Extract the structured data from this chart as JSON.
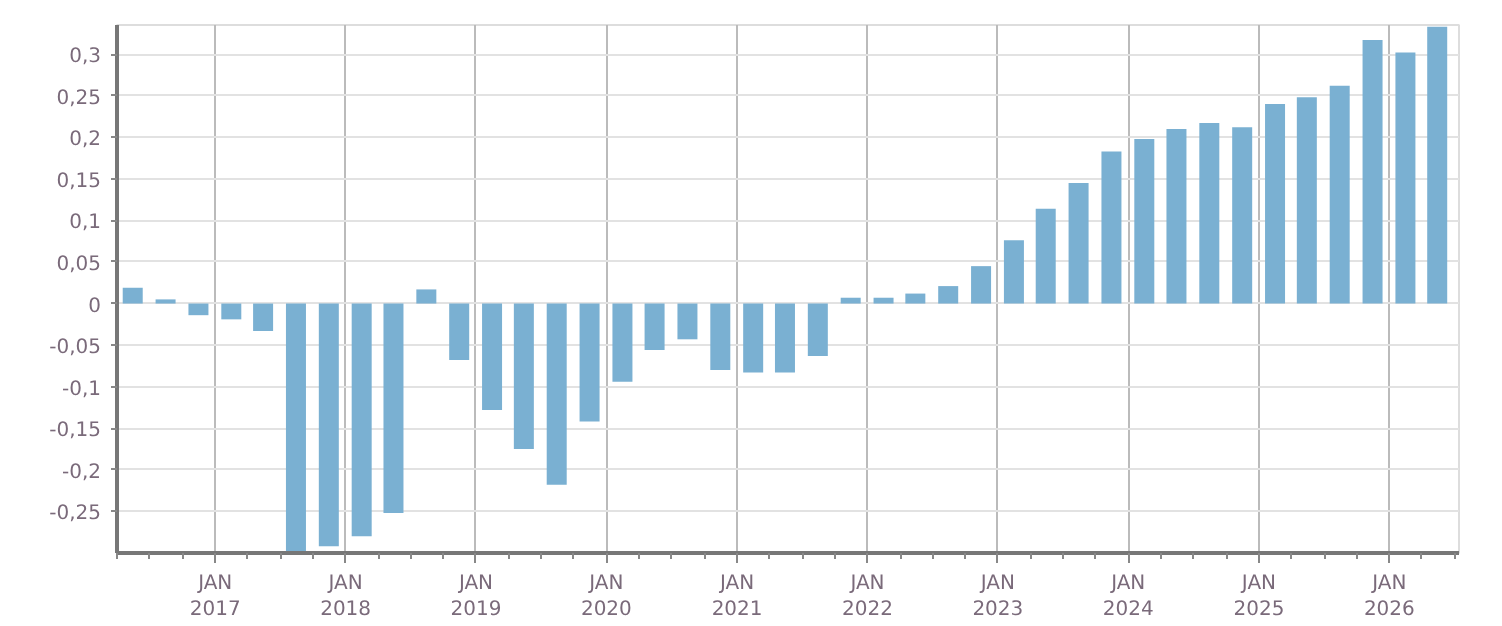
{
  "chart_data": {
    "type": "bar",
    "x": [
      "2016-05-15",
      "2016-08-15",
      "2016-11-15",
      "2017-02-15",
      "2017-05-15",
      "2017-08-15",
      "2017-11-15",
      "2018-02-15",
      "2018-05-15",
      "2018-08-15",
      "2018-11-15",
      "2019-02-15",
      "2019-05-15",
      "2019-08-15",
      "2019-11-15",
      "2020-02-15",
      "2020-05-15",
      "2020-08-15",
      "2020-11-15",
      "2021-02-15",
      "2021-05-15",
      "2021-08-15",
      "2021-11-15",
      "2022-02-15",
      "2022-05-15",
      "2022-08-15",
      "2022-11-15",
      "2023-02-15",
      "2023-05-15",
      "2023-08-15",
      "2023-11-15",
      "2024-02-15",
      "2024-05-15",
      "2024-08-15",
      "2024-11-15",
      "2025-02-15",
      "2025-05-15",
      "2025-08-15",
      "2025-11-15",
      "2026-02-15",
      "2026-05-15"
    ],
    "values": [
      0.019,
      0.005,
      -0.014,
      -0.019,
      -0.033,
      -0.3,
      -0.292,
      -0.28,
      -0.252,
      0.017,
      -0.068,
      -0.128,
      -0.175,
      -0.218,
      -0.142,
      -0.094,
      -0.056,
      -0.043,
      -0.08,
      -0.083,
      -0.083,
      -0.063,
      0.007,
      0.007,
      0.012,
      0.021,
      0.045,
      0.076,
      0.114,
      0.145,
      0.183,
      0.198,
      0.21,
      0.217,
      0.212,
      0.24,
      0.248,
      0.262,
      0.317,
      0.302,
      0.333
    ],
    "color": "#7ab0d2",
    "xlim": [
      "2016-04-01",
      "2026-07-15"
    ],
    "xticks": [
      {
        "value": "2017-01-01",
        "label": "JAN\n2017"
      },
      {
        "value": "2018-01-01",
        "label": "JAN\n2018"
      },
      {
        "value": "2019-01-01",
        "label": "JAN\n2019"
      },
      {
        "value": "2020-01-01",
        "label": "JAN\n2020"
      },
      {
        "value": "2021-01-01",
        "label": "JAN\n2021"
      },
      {
        "value": "2022-01-01",
        "label": "JAN\n2022"
      },
      {
        "value": "2023-01-01",
        "label": "JAN\n2023"
      },
      {
        "value": "2024-01-01",
        "label": "JAN\n2024"
      },
      {
        "value": "2025-01-01",
        "label": "JAN\n2025"
      },
      {
        "value": "2026-01-01",
        "label": "JAN\n2026"
      }
    ],
    "ylim": [
      -0.3,
      0.335
    ],
    "yticks": [
      {
        "value": -0.25,
        "label": "-0,25"
      },
      {
        "value": -0.2,
        "label": "-0,2"
      },
      {
        "value": -0.15,
        "label": "-0,15"
      },
      {
        "value": -0.1,
        "label": "-0,1"
      },
      {
        "value": -0.05,
        "label": "-0,05"
      },
      0,
      {
        "value": 0.05,
        "label": "0,05"
      },
      {
        "value": 0.1,
        "label": "0,1"
      },
      {
        "value": 0.15,
        "label": "0,15"
      },
      {
        "value": 0.2,
        "label": "0,2"
      },
      {
        "value": 0.25,
        "label": "0,25"
      },
      {
        "value": 0.3,
        "label": "0,3"
      }
    ],
    "grid": true
  }
}
